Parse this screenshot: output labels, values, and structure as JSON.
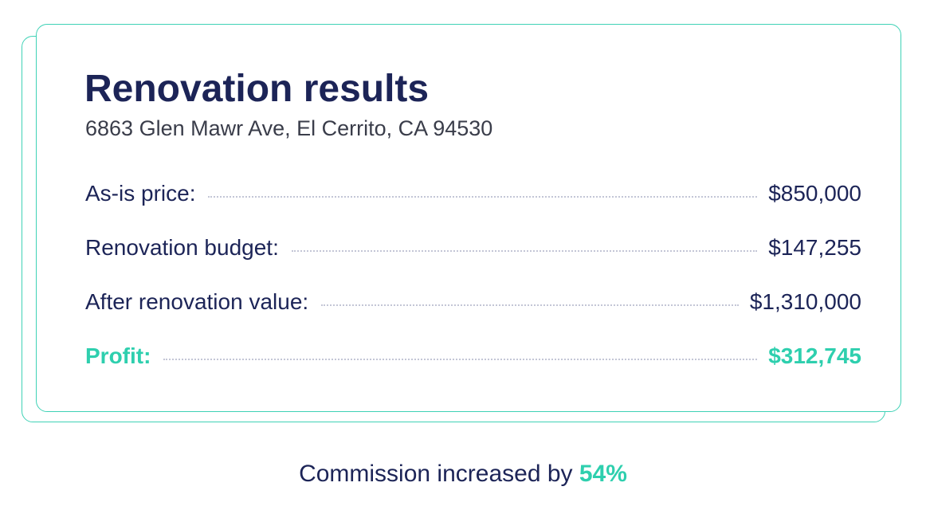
{
  "card": {
    "title": "Renovation results",
    "address": "6863 Glen Mawr Ave, El Cerrito, CA 94530",
    "rows": [
      {
        "label": "As-is price:",
        "value": "$850,000"
      },
      {
        "label": "Renovation budget:",
        "value": "$147,255"
      },
      {
        "label": "After renovation value:",
        "value": "$1,310,000"
      },
      {
        "label": "Profit:",
        "value": "$312,745"
      }
    ]
  },
  "footer": {
    "text": "Commission increased by",
    "percent": "54%"
  },
  "colors": {
    "accent": "#2ecfae",
    "navy": "#1c2457",
    "border": "#3fd2b6"
  }
}
